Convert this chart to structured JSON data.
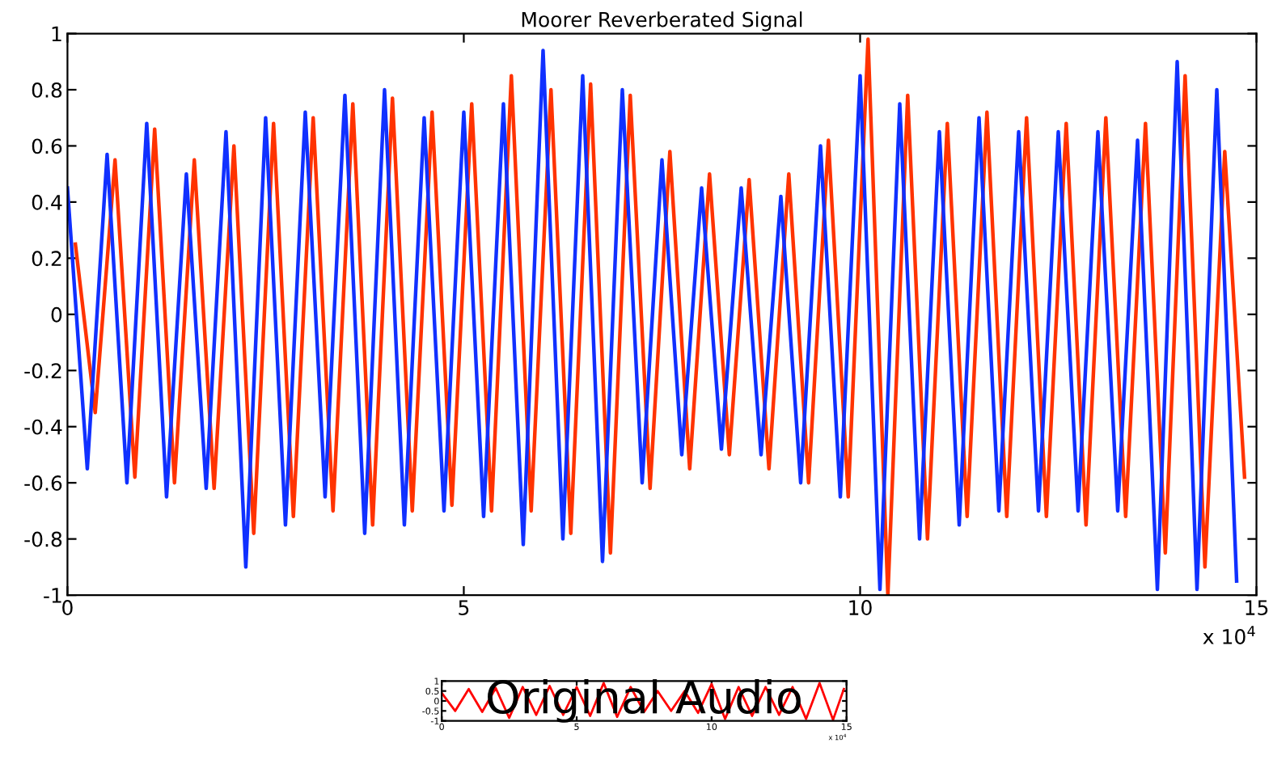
{
  "chart_data": [
    {
      "type": "line",
      "title": "Moorer Reverberated Signal",
      "xlim": [
        0,
        15
      ],
      "ylim": [
        -1,
        1
      ],
      "xticks": [
        0,
        5,
        10,
        15
      ],
      "yticks": [
        -1,
        -0.8,
        -0.6,
        -0.4,
        -0.2,
        0,
        0.2,
        0.4,
        0.6,
        0.8,
        1
      ],
      "annotations": [
        "x 10$^{4}$"
      ],
      "series": [
        {
          "color": "#ff3300",
          "x": [
            0.1,
            0.35,
            0.6,
            0.85,
            1.1,
            1.35,
            1.6,
            1.85,
            2.1,
            2.35,
            2.6,
            2.85,
            3.1,
            3.35,
            3.6,
            3.85,
            4.1,
            4.35,
            4.6,
            4.85,
            5.1,
            5.35,
            5.6,
            5.85,
            6.1,
            6.35,
            6.6,
            6.85,
            7.1,
            7.35,
            7.6,
            7.85,
            8.1,
            8.35,
            8.6,
            8.85,
            9.1,
            9.35,
            9.6,
            9.85,
            10.1,
            10.35,
            10.6,
            10.85,
            11.1,
            11.35,
            11.6,
            11.85,
            12.1,
            12.35,
            12.6,
            12.85,
            13.1,
            13.35,
            13.6,
            13.85,
            14.1,
            14.35,
            14.6,
            14.85
          ],
          "values": [
            0.25,
            -0.35,
            0.55,
            -0.58,
            0.66,
            -0.6,
            0.55,
            -0.62,
            0.6,
            -0.78,
            0.68,
            -0.72,
            0.7,
            -0.7,
            0.75,
            -0.75,
            0.77,
            -0.7,
            0.72,
            -0.68,
            0.75,
            -0.7,
            0.85,
            -0.7,
            0.8,
            -0.78,
            0.82,
            -0.85,
            0.78,
            -0.62,
            0.58,
            -0.55,
            0.5,
            -0.5,
            0.48,
            -0.55,
            0.5,
            -0.6,
            0.62,
            -0.65,
            0.98,
            -1.0,
            0.78,
            -0.8,
            0.68,
            -0.72,
            0.72,
            -0.72,
            0.7,
            -0.72,
            0.68,
            -0.75,
            0.7,
            -0.72,
            0.68,
            -0.85,
            0.85,
            -0.9,
            0.58,
            -0.58
          ]
        },
        {
          "color": "#1030ff",
          "x": [
            0,
            0.25,
            0.5,
            0.75,
            1,
            1.25,
            1.5,
            1.75,
            2,
            2.25,
            2.5,
            2.75,
            3,
            3.25,
            3.5,
            3.75,
            4,
            4.25,
            4.5,
            4.75,
            5,
            5.25,
            5.5,
            5.75,
            6,
            6.25,
            6.5,
            6.75,
            7,
            7.25,
            7.5,
            7.75,
            8,
            8.25,
            8.5,
            8.75,
            9,
            9.25,
            9.5,
            9.75,
            10,
            10.25,
            10.5,
            10.75,
            11,
            11.25,
            11.5,
            11.75,
            12,
            12.25,
            12.5,
            12.75,
            13,
            13.25,
            13.5,
            13.75,
            14,
            14.25,
            14.5,
            14.75
          ],
          "values": [
            0.45,
            -0.55,
            0.57,
            -0.6,
            0.68,
            -0.65,
            0.5,
            -0.62,
            0.65,
            -0.9,
            0.7,
            -0.75,
            0.72,
            -0.65,
            0.78,
            -0.78,
            0.8,
            -0.75,
            0.7,
            -0.7,
            0.72,
            -0.72,
            0.75,
            -0.82,
            0.94,
            -0.8,
            0.85,
            -0.88,
            0.8,
            -0.6,
            0.55,
            -0.5,
            0.45,
            -0.48,
            0.45,
            -0.5,
            0.42,
            -0.6,
            0.6,
            -0.65,
            0.85,
            -0.98,
            0.75,
            -0.8,
            0.65,
            -0.75,
            0.7,
            -0.7,
            0.65,
            -0.7,
            0.65,
            -0.7,
            0.65,
            -0.7,
            0.62,
            -0.98,
            0.9,
            -0.98,
            0.8,
            -0.95
          ]
        }
      ]
    },
    {
      "type": "line",
      "xlim": [
        0,
        15
      ],
      "ylim": [
        -1,
        1
      ],
      "xticks": [
        0,
        5,
        10,
        15
      ],
      "yticks": [
        -1,
        -0.5,
        0,
        0.5,
        1
      ],
      "annotations": [
        "Original Audio",
        "x 10$^{4}$"
      ],
      "series": [
        {
          "color": "#ff0000",
          "x": [
            0,
            0.5,
            1,
            1.5,
            2,
            2.5,
            3,
            3.5,
            4,
            4.5,
            5,
            5.5,
            6,
            6.5,
            7,
            7.5,
            8,
            8.5,
            9,
            9.5,
            10,
            10.5,
            11,
            11.5,
            12,
            12.5,
            13,
            13.5,
            14,
            14.5,
            14.9
          ],
          "values": [
            0.4,
            -0.5,
            0.6,
            -0.55,
            0.65,
            -0.85,
            0.7,
            -0.7,
            0.75,
            -0.7,
            0.7,
            -0.75,
            0.9,
            -0.8,
            0.7,
            -0.55,
            0.5,
            -0.5,
            0.5,
            -0.6,
            0.85,
            -0.9,
            0.7,
            -0.75,
            0.7,
            -0.7,
            0.7,
            -0.9,
            0.9,
            -0.95,
            0.6
          ]
        }
      ]
    }
  ]
}
